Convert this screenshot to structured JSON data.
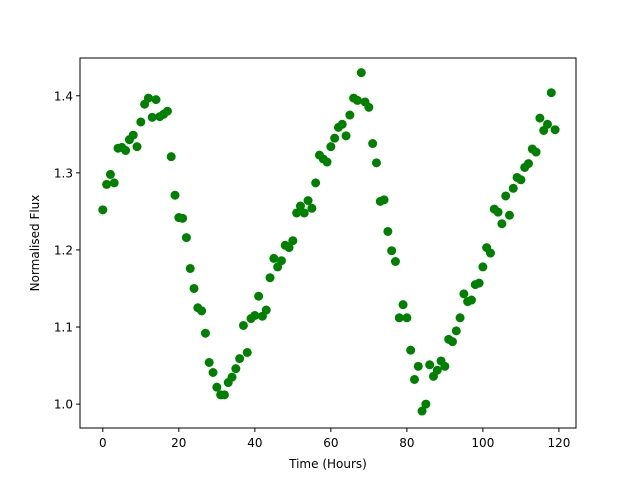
{
  "chart_data": {
    "type": "scatter",
    "title": "",
    "xlabel": "Time (Hours)",
    "ylabel": "Normalised Flux",
    "xlim": [
      -6,
      124.5
    ],
    "ylim": [
      0.969,
      1.449
    ],
    "xticks": [
      0,
      20,
      40,
      60,
      80,
      100,
      120
    ],
    "yticks": [
      1.0,
      1.1,
      1.2,
      1.3,
      1.4
    ],
    "ytick_labels": [
      "1.0",
      "1.1",
      "1.2",
      "1.3",
      "1.4"
    ],
    "grid": false,
    "marker_color": "#008000",
    "series": [
      {
        "x": [
          0,
          1,
          2,
          3,
          4,
          5,
          6,
          7,
          8,
          9,
          10,
          11,
          12,
          13,
          14,
          15,
          16,
          17,
          18,
          19,
          20,
          21,
          22,
          23,
          24,
          25,
          26,
          27,
          28,
          29,
          30,
          31,
          32,
          33,
          34,
          35,
          36,
          37,
          38,
          39,
          40,
          41,
          42,
          43,
          44,
          45,
          46,
          47,
          48,
          49,
          50,
          51,
          52,
          53,
          54,
          55,
          56,
          57,
          58,
          59,
          60,
          61,
          62,
          63,
          64,
          65,
          66,
          67,
          68,
          69,
          70,
          71,
          72,
          73,
          74,
          75,
          76,
          77,
          78,
          79,
          80,
          81,
          82,
          83,
          84,
          85,
          86,
          87,
          88,
          89,
          90,
          91,
          92,
          93,
          94,
          95,
          96,
          97,
          98,
          99,
          100,
          101,
          102,
          103,
          104,
          105,
          106,
          107,
          108,
          109,
          110,
          111,
          112,
          113,
          114,
          115,
          116,
          117,
          118,
          119
        ],
        "y": [
          1.252,
          1.285,
          1.298,
          1.287,
          1.332,
          1.333,
          1.329,
          1.343,
          1.349,
          1.334,
          1.366,
          1.389,
          1.397,
          1.372,
          1.395,
          1.373,
          1.376,
          1.38,
          1.321,
          1.271,
          1.242,
          1.241,
          1.216,
          1.176,
          1.15,
          1.125,
          1.121,
          1.092,
          1.054,
          1.041,
          1.022,
          1.012,
          1.012,
          1.028,
          1.035,
          1.046,
          1.059,
          1.102,
          1.067,
          1.111,
          1.115,
          1.14,
          1.114,
          1.122,
          1.164,
          1.189,
          1.178,
          1.186,
          1.206,
          1.203,
          1.212,
          1.248,
          1.257,
          1.248,
          1.264,
          1.254,
          1.287,
          1.323,
          1.318,
          1.314,
          1.334,
          1.345,
          1.359,
          1.363,
          1.348,
          1.375,
          1.397,
          1.394,
          1.43,
          1.392,
          1.385,
          1.338,
          1.313,
          1.263,
          1.265,
          1.224,
          1.199,
          1.185,
          1.112,
          1.129,
          1.112,
          1.07,
          1.032,
          1.049,
          0.991,
          1.0,
          1.051,
          1.036,
          1.044,
          1.056,
          1.049,
          1.084,
          1.081,
          1.095,
          1.112,
          1.143,
          1.133,
          1.135,
          1.155,
          1.157,
          1.178,
          1.203,
          1.196,
          1.253,
          1.249,
          1.234,
          1.27,
          1.245,
          1.28,
          1.294,
          1.291,
          1.307,
          1.312,
          1.331,
          1.327,
          1.371,
          1.355,
          1.363,
          1.404,
          1.356
        ]
      }
    ]
  }
}
